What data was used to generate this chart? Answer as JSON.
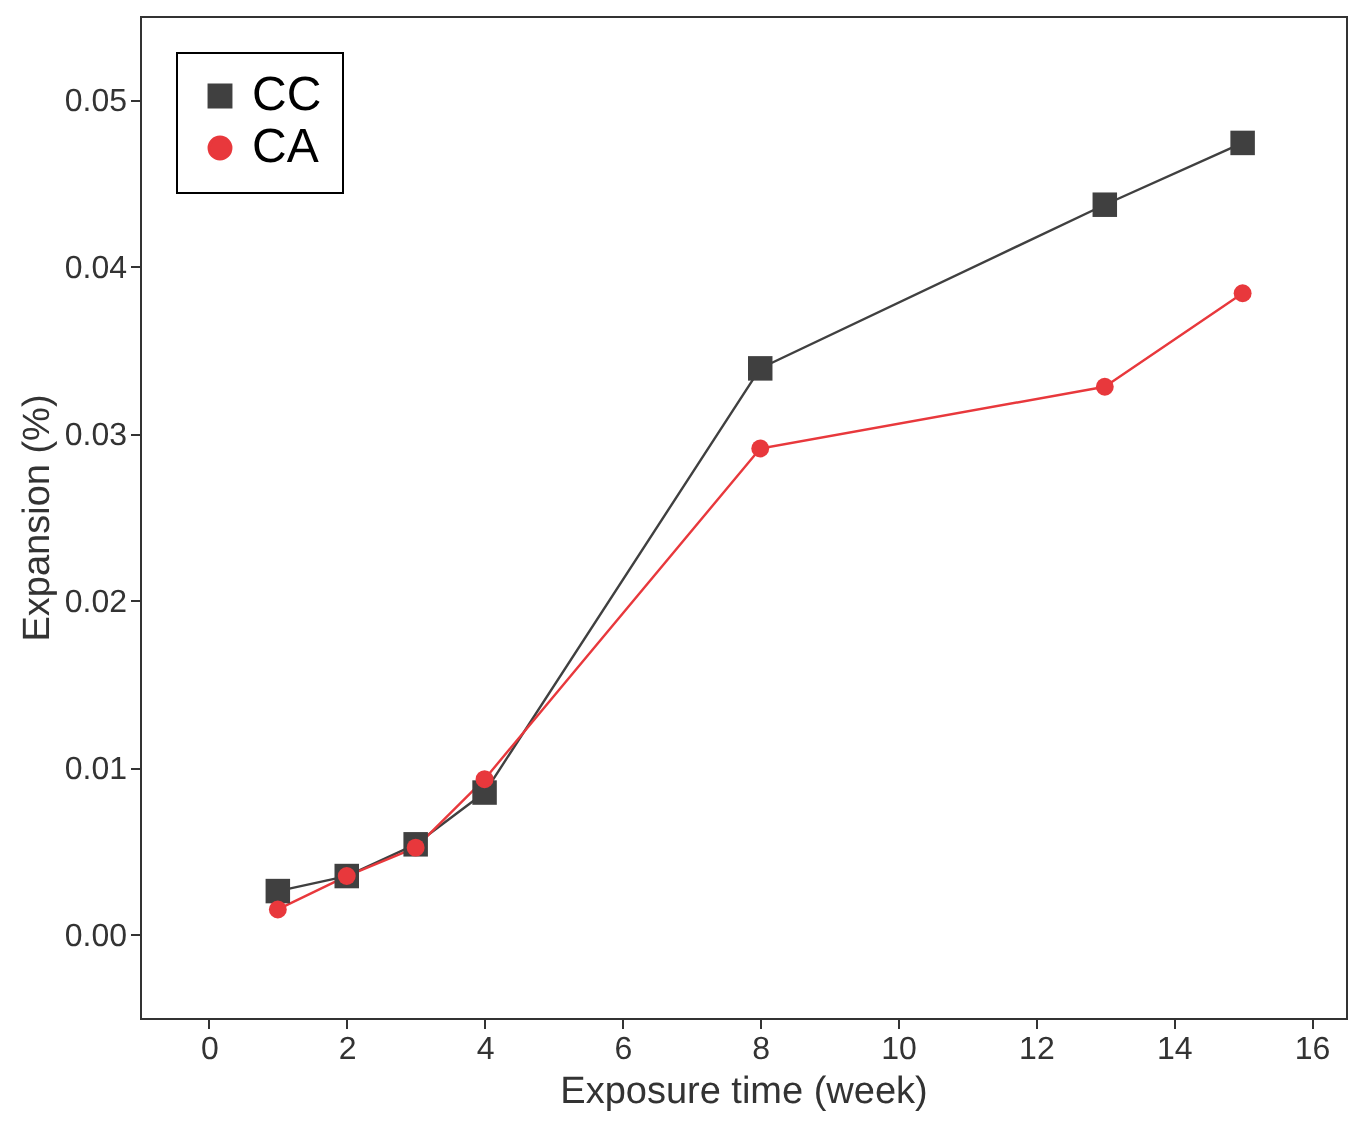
{
  "chart_data": {
    "type": "line",
    "xlabel": "Exposure time (week)",
    "ylabel": "Expansion (%)",
    "x": [
      1,
      2,
      3,
      4,
      8,
      13,
      15
    ],
    "series": [
      {
        "name": "CC",
        "color": "#404040",
        "marker": "square",
        "values": [
          0.0026,
          0.0035,
          0.0054,
          0.0085,
          0.0339,
          0.0437,
          0.0474
        ]
      },
      {
        "name": "CA",
        "color": "#e8383c",
        "marker": "circle",
        "values": [
          0.0015,
          0.0035,
          0.0052,
          0.0093,
          0.0291,
          0.0328,
          0.0384
        ]
      }
    ],
    "xlim": [
      -1,
      16.5
    ],
    "xticks": [
      0,
      2,
      4,
      6,
      8,
      10,
      12,
      14,
      16
    ],
    "ylim": [
      -0.005,
      0.055
    ],
    "yticks": [
      {
        "value": 0,
        "label": "0.00"
      },
      {
        "value": 0.01,
        "label": "0.01"
      },
      {
        "value": 0.02,
        "label": "0.02"
      },
      {
        "value": 0.03,
        "label": "0.03"
      },
      {
        "value": 0.04,
        "label": "0.04"
      },
      {
        "value": 0.05,
        "label": "0.05"
      }
    ],
    "grid": false,
    "legend": "top left",
    "line_style": "solid"
  }
}
